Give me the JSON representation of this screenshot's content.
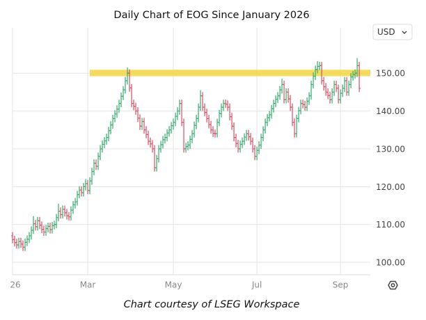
{
  "chart_data": {
    "type": "ohlc",
    "title": "Daily Chart of EOG Since January 2026",
    "currency": "USD",
    "footer": "Chart courtesy of LSEG Workspace",
    "up_color": "#2eae6a",
    "down_color": "#e04a5f",
    "grid": true,
    "ylim": [
      96.7,
      165.3
    ],
    "yticks": [
      {
        "value": 100,
        "label": "100.00"
      },
      {
        "value": 110,
        "label": "110.00"
      },
      {
        "value": 120,
        "label": "120.00"
      },
      {
        "value": 130,
        "label": "130.00"
      },
      {
        "value": 140,
        "label": "140.00"
      },
      {
        "value": 150,
        "label": "150.00"
      }
    ],
    "xlim": [
      0,
      171.3
    ],
    "xticks": [
      {
        "value": 0,
        "label": "26"
      },
      {
        "value": 36,
        "label": "Mar"
      },
      {
        "value": 77,
        "label": "May"
      },
      {
        "value": 117,
        "label": "Jul"
      },
      {
        "value": 157,
        "label": "Sep"
      }
    ],
    "band": {
      "x_start": 37,
      "y": [
        149.2,
        150.9
      ],
      "color": "#f2d640"
    },
    "open": [
      107.0,
      106.0,
      105.2,
      104.6,
      105.5,
      104.8,
      104.0,
      105.3,
      106.1,
      107.0,
      108.5,
      110.2,
      109.4,
      111.0,
      109.8,
      108.7,
      108.0,
      108.9,
      109.5,
      108.6,
      109.7,
      110.0,
      111.8,
      113.5,
      112.6,
      114.0,
      113.1,
      112.3,
      112.0,
      113.8,
      115.2,
      116.0,
      117.9,
      119.1,
      118.4,
      120.0,
      120.8,
      119.0,
      121.5,
      124.0,
      126.2,
      125.4,
      128.0,
      130.0,
      131.2,
      132.1,
      133.0,
      134.8,
      136.3,
      138.0,
      139.2,
      140.5,
      142.0,
      143.9,
      145.6,
      148.0,
      150.0,
      146.1,
      142.0,
      141.2,
      140.0,
      138.1,
      136.0,
      137.2,
      135.0,
      133.8,
      132.0,
      131.3,
      130.0,
      125.0,
      127.4,
      130.0,
      131.1,
      132.4,
      133.0,
      134.2,
      135.0,
      136.1,
      137.0,
      138.6,
      140.0,
      142.0,
      137.0,
      130.0,
      130.6,
      131.0,
      132.5,
      134.0,
      136.2,
      138.0,
      141.0,
      144.0,
      141.0,
      139.6,
      138.0,
      136.4,
      135.0,
      134.1,
      134.0,
      137.0,
      139.3,
      141.0,
      142.0,
      141.8,
      141.0,
      138.5,
      136.0,
      133.0,
      131.4,
      130.0,
      131.2,
      132.0,
      133.1,
      134.0,
      133.2,
      132.0,
      130.0,
      128.0,
      129.6,
      131.0,
      133.0,
      135.0,
      137.0,
      138.2,
      139.0,
      140.6,
      142.0,
      143.1,
      144.0,
      145.6,
      147.0,
      143.0,
      145.0,
      143.2,
      141.0,
      137.0,
      134.0,
      138.0,
      140.1,
      142.0,
      141.7,
      141.0,
      142.6,
      144.0,
      147.0,
      149.2,
      151.0,
      151.8,
      152.0,
      148.0,
      146.4,
      145.0,
      144.1,
      143.0,
      145.0,
      147.0,
      146.0,
      143.0,
      144.7,
      146.0,
      148.0,
      145.0,
      147.0,
      149.0,
      149.6,
      150.0,
      152.0
    ],
    "high": [
      108.0,
      107.0,
      106.2,
      106.5,
      106.5,
      105.8,
      106.3,
      107.1,
      108.0,
      109.5,
      112.2,
      111.2,
      112.0,
      112.0,
      110.8,
      109.7,
      109.9,
      110.5,
      110.5,
      110.7,
      111.0,
      112.8,
      115.5,
      114.5,
      115.0,
      115.0,
      114.1,
      113.3,
      114.8,
      116.2,
      117.0,
      118.9,
      120.1,
      120.1,
      121.0,
      122.0,
      121.8,
      122.5,
      125.0,
      127.2,
      127.2,
      129.0,
      131.0,
      132.2,
      133.1,
      134.0,
      135.8,
      137.3,
      139.0,
      140.2,
      141.5,
      143.0,
      144.9,
      146.6,
      149.0,
      151.5,
      151.0,
      147.1,
      143.0,
      142.2,
      141.0,
      139.1,
      138.2,
      138.2,
      136.0,
      134.8,
      133.0,
      132.3,
      131.0,
      128.4,
      131.0,
      132.1,
      133.4,
      134.0,
      135.2,
      136.0,
      137.1,
      138.0,
      139.6,
      141.0,
      143.0,
      143.0,
      138.0,
      131.6,
      132.0,
      133.5,
      135.0,
      137.2,
      139.0,
      142.0,
      145.5,
      145.0,
      142.0,
      140.6,
      139.0,
      137.4,
      136.0,
      135.1,
      138.0,
      140.3,
      142.0,
      143.0,
      143.0,
      142.8,
      142.0,
      139.5,
      137.0,
      134.0,
      132.4,
      132.2,
      133.0,
      134.1,
      135.0,
      135.0,
      134.2,
      133.0,
      131.0,
      130.6,
      132.0,
      134.0,
      136.0,
      138.0,
      139.2,
      140.0,
      141.6,
      143.0,
      144.1,
      145.0,
      146.6,
      148.5,
      148.0,
      146.0,
      146.0,
      144.2,
      142.0,
      138.0,
      139.0,
      141.1,
      143.0,
      143.0,
      142.7,
      143.6,
      145.0,
      148.0,
      150.2,
      152.0,
      153.2,
      153.0,
      153.0,
      149.0,
      147.4,
      146.0,
      145.1,
      146.0,
      148.0,
      148.0,
      147.0,
      145.7,
      147.0,
      149.0,
      149.0,
      148.0,
      150.0,
      150.6,
      151.0,
      154.0,
      153.0
    ],
    "low": [
      105.0,
      104.2,
      103.6,
      103.6,
      103.8,
      103.0,
      103.0,
      104.3,
      105.1,
      106.0,
      107.5,
      108.4,
      108.4,
      108.8,
      107.7,
      107.0,
      107.0,
      107.9,
      107.6,
      107.6,
      108.7,
      109.0,
      110.8,
      111.6,
      111.6,
      112.1,
      111.3,
      111.0,
      111.0,
      112.8,
      114.2,
      115.0,
      116.9,
      117.4,
      117.4,
      119.0,
      118.0,
      118.0,
      120.5,
      123.0,
      124.4,
      124.4,
      127.0,
      129.0,
      130.2,
      131.1,
      132.0,
      133.8,
      135.3,
      137.0,
      138.2,
      139.5,
      141.0,
      142.9,
      144.6,
      147.0,
      145.1,
      141.0,
      140.2,
      139.0,
      137.1,
      135.0,
      135.0,
      134.0,
      132.8,
      131.0,
      130.3,
      129.0,
      124.0,
      124.0,
      126.4,
      129.0,
      130.1,
      131.4,
      132.0,
      133.2,
      134.0,
      135.1,
      136.0,
      137.6,
      139.0,
      136.0,
      129.0,
      129.0,
      129.6,
      130.0,
      131.5,
      133.0,
      135.2,
      137.0,
      140.0,
      140.0,
      138.6,
      137.0,
      135.4,
      134.0,
      133.1,
      133.0,
      133.0,
      136.0,
      138.3,
      140.0,
      140.8,
      140.0,
      137.5,
      135.0,
      132.0,
      130.4,
      129.0,
      129.0,
      130.2,
      131.0,
      132.1,
      132.2,
      131.0,
      129.0,
      127.0,
      127.0,
      128.6,
      130.0,
      132.0,
      134.0,
      136.0,
      137.2,
      138.0,
      139.6,
      141.0,
      142.1,
      143.0,
      144.6,
      142.0,
      142.0,
      142.2,
      140.0,
      136.0,
      133.0,
      133.0,
      137.0,
      139.1,
      140.7,
      140.0,
      140.0,
      141.6,
      143.0,
      146.0,
      148.2,
      150.0,
      150.8,
      147.0,
      145.4,
      144.0,
      143.1,
      142.0,
      142.0,
      144.0,
      145.0,
      142.0,
      142.0,
      143.7,
      145.0,
      144.0,
      144.0,
      146.0,
      148.0,
      148.6,
      149.0,
      145.0
    ],
    "close": [
      106.0,
      105.2,
      104.6,
      105.5,
      104.8,
      104.0,
      105.3,
      106.1,
      107.0,
      108.5,
      110.2,
      109.4,
      111.0,
      109.8,
      108.7,
      108.0,
      108.9,
      109.5,
      108.6,
      109.7,
      110.0,
      111.8,
      113.5,
      112.6,
      114.0,
      113.1,
      112.3,
      112.0,
      113.8,
      115.2,
      116.0,
      117.9,
      119.1,
      118.4,
      120.0,
      120.8,
      119.0,
      121.5,
      124.0,
      126.2,
      125.4,
      128.0,
      130.0,
      131.2,
      132.1,
      133.0,
      134.8,
      136.3,
      138.0,
      139.2,
      140.5,
      142.0,
      143.9,
      145.6,
      148.0,
      150.0,
      146.1,
      142.0,
      141.2,
      140.0,
      138.1,
      136.0,
      137.2,
      135.0,
      133.8,
      132.0,
      131.3,
      130.0,
      125.0,
      127.4,
      130.0,
      131.1,
      132.4,
      133.0,
      134.2,
      135.0,
      136.1,
      137.0,
      138.6,
      140.0,
      142.0,
      137.0,
      130.0,
      130.6,
      131.0,
      132.5,
      134.0,
      136.2,
      138.0,
      141.0,
      144.0,
      141.0,
      139.6,
      138.0,
      136.4,
      135.0,
      134.1,
      134.0,
      137.0,
      139.3,
      141.0,
      142.0,
      141.8,
      141.0,
      138.5,
      136.0,
      133.0,
      131.4,
      130.0,
      131.2,
      132.0,
      133.1,
      134.0,
      133.2,
      132.0,
      130.0,
      128.0,
      129.6,
      131.0,
      133.0,
      135.0,
      137.0,
      138.2,
      139.0,
      140.6,
      142.0,
      143.1,
      144.0,
      145.6,
      147.0,
      143.0,
      145.0,
      143.2,
      141.0,
      137.0,
      134.0,
      138.0,
      140.1,
      142.0,
      141.7,
      141.0,
      142.6,
      144.0,
      147.0,
      149.2,
      151.0,
      151.8,
      152.0,
      148.0,
      146.4,
      145.0,
      144.1,
      143.0,
      145.0,
      147.0,
      146.0,
      143.0,
      144.7,
      146.0,
      148.0,
      145.0,
      147.0,
      149.0,
      149.6,
      150.0,
      152.0,
      146.0
    ]
  }
}
